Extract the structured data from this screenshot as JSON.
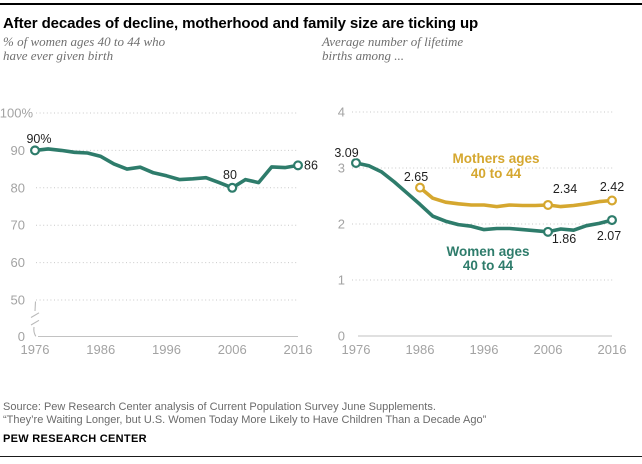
{
  "header": {
    "title": "After decades of decline, motherhood and family size are ticking up"
  },
  "subtitles": {
    "left": {
      "line1": "% of women ages 40 to 44 who",
      "line2": "have ever given birth"
    },
    "right": {
      "line1": "Average number of lifetime",
      "line2": "births among ..."
    }
  },
  "footer": {
    "source_line1": "Source: Pew Research Center analysis of Current Population Survey June Supplements.",
    "source_line2": "“They’re Waiting Longer, but U.S. Women Today More Likely to Have Children Than a Decade Ago”",
    "brand": "PEW RESEARCH CENTER"
  },
  "colors": {
    "green": "#2e7c6b",
    "gold": "#d5a72f",
    "tick_gray": "#a3a3a3",
    "grid_gray": "#c9c9c9",
    "axis_gray": "#c2c2c2",
    "data_label": "#1f1f1f"
  },
  "chart_data": [
    {
      "type": "line",
      "title": "% of women ages 40 to 44 who have ever given birth",
      "x": [
        1976,
        1978,
        1980,
        1982,
        1984,
        1986,
        1988,
        1990,
        1992,
        1994,
        1996,
        1998,
        2000,
        2002,
        2004,
        2006,
        2008,
        2010,
        2012,
        2014,
        2016
      ],
      "series": [
        {
          "name": "Women ages 40 to 44 who have ever given birth",
          "color_key": "green",
          "values": [
            90,
            90.4,
            90,
            89.5,
            89.3,
            88.4,
            86.4,
            85,
            85.5,
            84,
            83.2,
            82.2,
            82.4,
            82.7,
            81.4,
            80,
            82.2,
            81.4,
            85.6,
            85.4,
            86
          ]
        }
      ],
      "ylim": [
        0,
        100
      ],
      "axis_break_between": [
        0,
        50
      ],
      "yticks": [
        {
          "value": 100,
          "label": "100%"
        },
        {
          "value": 90,
          "label": "90"
        },
        {
          "value": 80,
          "label": "80"
        },
        {
          "value": 70,
          "label": "70"
        },
        {
          "value": 60,
          "label": "60"
        },
        {
          "value": 50,
          "label": "50"
        },
        {
          "value": 0,
          "label": "0"
        }
      ],
      "xticks": [
        1976,
        1986,
        1996,
        2006,
        2016
      ],
      "annotations": [
        {
          "series": 0,
          "x": 1976,
          "value": 90,
          "label": "90%"
        },
        {
          "series": 0,
          "x": 2006,
          "value": 80,
          "label": "80"
        },
        {
          "series": 0,
          "x": 2016,
          "value": 86,
          "label": "86"
        }
      ],
      "grid": "dotted",
      "legend_position": "none"
    },
    {
      "type": "line",
      "title": "Average number of lifetime births among ...",
      "x": [
        1976,
        1978,
        1980,
        1982,
        1984,
        1986,
        1988,
        1990,
        1992,
        1994,
        1996,
        1998,
        2000,
        2002,
        2004,
        2006,
        2008,
        2010,
        2012,
        2014,
        2016
      ],
      "series": [
        {
          "name": "Mothers ages 40 to 44",
          "color_key": "gold",
          "label_lines": [
            "Mothers ages",
            "40 to 44"
          ],
          "values": [
            null,
            null,
            null,
            null,
            null,
            2.65,
            2.46,
            2.39,
            2.36,
            2.34,
            2.34,
            2.31,
            2.34,
            2.33,
            2.33,
            2.34,
            2.31,
            2.33,
            2.36,
            2.4,
            2.42
          ]
        },
        {
          "name": "Women ages 40 to 44",
          "color_key": "green",
          "label_lines": [
            "Women ages",
            "40 to 44"
          ],
          "values": [
            3.09,
            3.04,
            2.93,
            2.75,
            2.55,
            2.35,
            2.14,
            2.05,
            1.99,
            1.96,
            1.9,
            1.92,
            1.92,
            1.9,
            1.88,
            1.86,
            1.91,
            1.89,
            1.97,
            2.01,
            2.07
          ]
        }
      ],
      "ylim": [
        0,
        4
      ],
      "yticks": [
        {
          "value": 4,
          "label": "4"
        },
        {
          "value": 3,
          "label": "3"
        },
        {
          "value": 2,
          "label": "2"
        },
        {
          "value": 1,
          "label": "1"
        },
        {
          "value": 0,
          "label": "0"
        }
      ],
      "xticks": [
        1976,
        1986,
        1996,
        2006,
        2016
      ],
      "annotations": [
        {
          "series": 1,
          "x": 1976,
          "value": 3.09,
          "label": "3.09"
        },
        {
          "series": 0,
          "x": 1986,
          "value": 2.65,
          "label": "2.65"
        },
        {
          "series": 0,
          "x": 2006,
          "value": 2.34,
          "label": "2.34"
        },
        {
          "series": 0,
          "x": 2016,
          "value": 2.42,
          "label": "2.42"
        },
        {
          "series": 1,
          "x": 2006,
          "value": 1.86,
          "label": "1.86"
        },
        {
          "series": 1,
          "x": 2016,
          "value": 2.07,
          "label": "2.07"
        }
      ],
      "grid": "dotted",
      "legend_position": "inline-labels"
    }
  ]
}
